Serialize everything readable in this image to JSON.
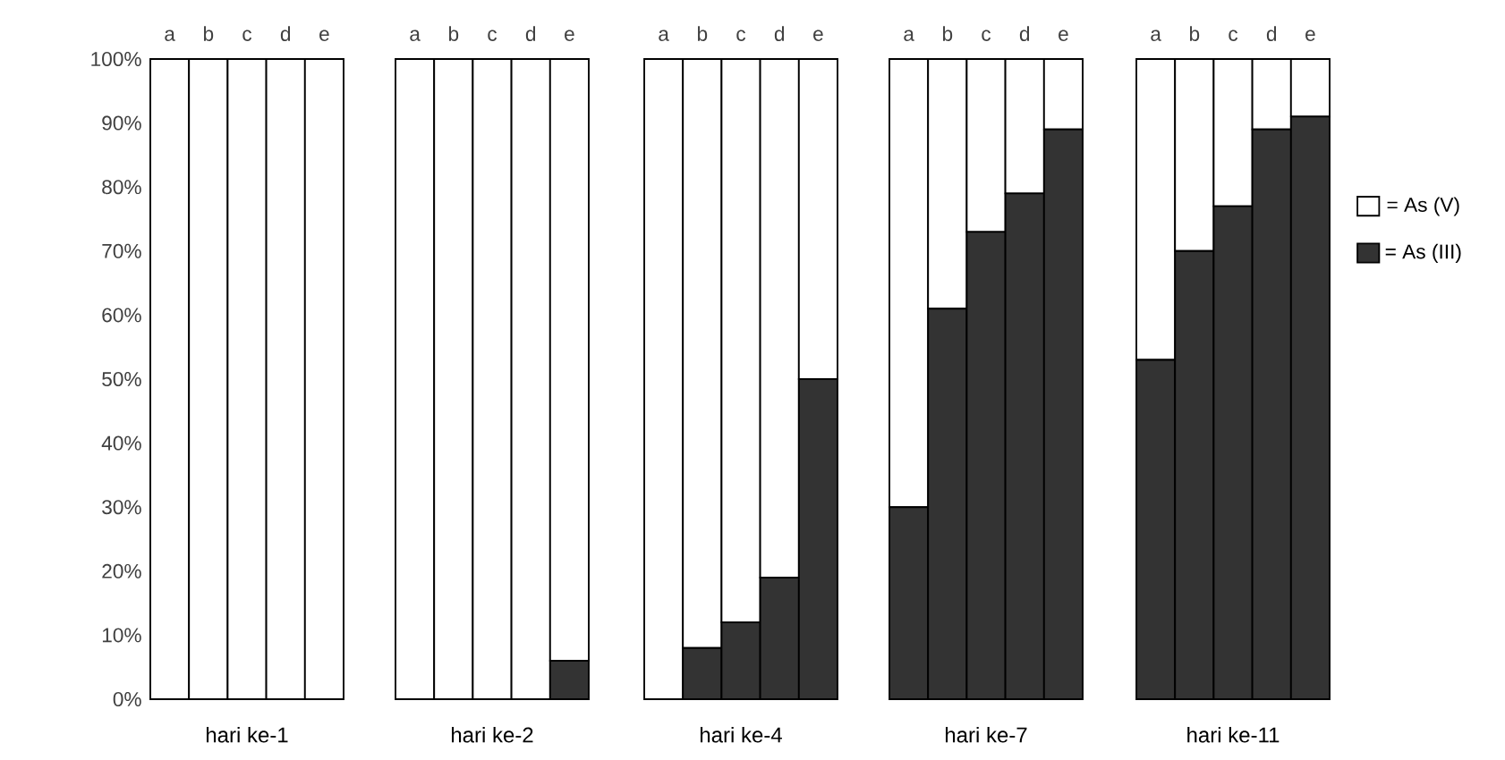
{
  "chart_data": [
    {
      "type": "bar",
      "stacked": true,
      "xlabel": "hari ke-1",
      "categories": [
        "a",
        "b",
        "c",
        "d",
        "e"
      ],
      "ylim": [
        0,
        100
      ],
      "yticks": [
        {
          "value": 0,
          "label": "0%"
        },
        {
          "value": 10,
          "label": "10%"
        },
        {
          "value": 20,
          "label": "20%"
        },
        {
          "value": 30,
          "label": "30%"
        },
        {
          "value": 40,
          "label": "40%"
        },
        {
          "value": 50,
          "label": "50%"
        },
        {
          "value": 60,
          "label": "60%"
        },
        {
          "value": 70,
          "label": "70%"
        },
        {
          "value": 80,
          "label": "80%"
        },
        {
          "value": 90,
          "label": "90%"
        },
        {
          "value": 100,
          "label": "100%"
        }
      ],
      "series": [
        {
          "color": "#333333",
          "values": [
            0,
            0,
            0,
            0,
            0
          ]
        },
        {
          "color": "#ffffff",
          "values": [
            100,
            100,
            100,
            100,
            100
          ]
        }
      ]
    },
    {
      "type": "bar",
      "stacked": true,
      "xlabel": "hari ke-2",
      "categories": [
        "a",
        "b",
        "c",
        "d",
        "e"
      ],
      "ylim": [
        0,
        100
      ],
      "tick_labels": "x",
      "series": [
        {
          "color": "#333333",
          "values": [
            0,
            0,
            0,
            0,
            6
          ]
        },
        {
          "color": "#ffffff",
          "values": [
            100,
            100,
            100,
            100,
            94
          ]
        }
      ]
    },
    {
      "type": "bar",
      "stacked": true,
      "xlabel": "hari ke-4",
      "categories": [
        "a",
        "b",
        "c",
        "d",
        "e"
      ],
      "ylim": [
        0,
        100
      ],
      "tick_labels": "x",
      "series": [
        {
          "color": "#333333",
          "values": [
            0,
            8,
            12,
            19,
            50
          ]
        },
        {
          "color": "#ffffff",
          "values": [
            100,
            92,
            88,
            81,
            50
          ]
        }
      ]
    },
    {
      "type": "bar",
      "stacked": true,
      "xlabel": "hari ke-7",
      "categories": [
        "a",
        "b",
        "c",
        "d",
        "e"
      ],
      "ylim": [
        0,
        100
      ],
      "tick_labels": "x",
      "series": [
        {
          "color": "#333333",
          "values": [
            30,
            61,
            73,
            79,
            89
          ]
        },
        {
          "color": "#ffffff",
          "values": [
            70,
            39,
            27,
            21,
            11
          ]
        }
      ]
    },
    {
      "type": "bar",
      "stacked": true,
      "xlabel": "hari ke-11",
      "categories": [
        "a",
        "b",
        "c",
        "d",
        "e"
      ],
      "ylim": [
        0,
        100
      ],
      "tick_labels": "x",
      "legend": "right",
      "series": [
        {
          "name": "= As (III)",
          "color": "#333333",
          "values": [
            53,
            70,
            77,
            89,
            91
          ]
        },
        {
          "name": "= As (V)",
          "color": "#ffffff",
          "values": [
            47,
            30,
            23,
            11,
            9
          ]
        }
      ]
    }
  ]
}
